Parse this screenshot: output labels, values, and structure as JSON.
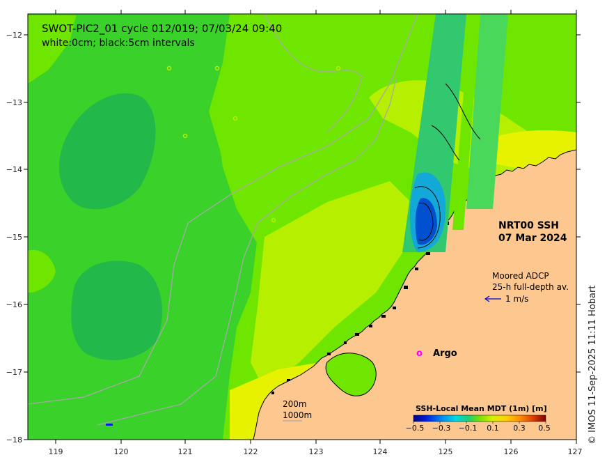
{
  "map": {
    "title": "SWOT-PIC2_01 cycle 012/019; 07/03/24 09:40",
    "subtitle": "white:0cm; black:5cm intervals",
    "product": "NRT00 SSH",
    "date": "07 Mar 2024",
    "adcp_title": "Moored ADCP",
    "adcp_desc": "25-h full-depth av.",
    "adcp_scale": "1 m/s",
    "argo_marker": "o",
    "argo_label": "Argo",
    "contour_200": "200m",
    "contour_1000": "1000m",
    "colorbar_title": "SSH-Local Mean MDT (1m) [m]",
    "colorbar_ticks": [
      "−0.5",
      "−0.3",
      "−0.1",
      "0.1",
      "0.3",
      "0.5"
    ],
    "credit": "© IMOS 11-Sep-2025 11:11 Hobart"
  },
  "axes": {
    "x_ticks": [
      "119",
      "120",
      "121",
      "122",
      "123",
      "124",
      "125",
      "126",
      "127"
    ],
    "y_ticks": [
      "−12",
      "−13",
      "−14",
      "−15",
      "−16",
      "−17",
      "−18"
    ],
    "lon_range": [
      118.6,
      127
    ],
    "lat_range": [
      -18,
      -11.8
    ]
  },
  "colors": {
    "ocean_base": "#6fe600",
    "ocean_mid": "#39d12a",
    "ocean_low": "#22b84a",
    "ocean_high": "#b6f000",
    "ocean_yellow": "#e6f200",
    "land": "#fcc890",
    "argo": "#ff00ff",
    "adcp_arrow": "#0000cc"
  }
}
